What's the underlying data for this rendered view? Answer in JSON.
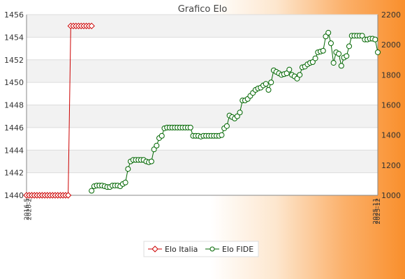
{
  "chart_data": {
    "type": "line",
    "title": "Grafico Elo",
    "xlabel": "",
    "ylabel": "",
    "y_left": {
      "range": [
        1440,
        1456
      ],
      "ticks": [
        1440,
        1442,
        1444,
        1446,
        1448,
        1450,
        1452,
        1454,
        1456
      ]
    },
    "y_right": {
      "range": [
        1000,
        2200
      ],
      "ticks": [
        1000,
        1200,
        1400,
        1600,
        1800,
        2000,
        2200
      ]
    },
    "grid": true,
    "legend_position": "bottom-center",
    "x_tick_labels_start": [
      "2016-5",
      "2020-2"
    ],
    "x_tick_labels_end": [
      "2025-11",
      "2025-12"
    ],
    "series": [
      {
        "name": "Elo Italia",
        "axis": "left",
        "color": "#cc0000",
        "marker": "diamond",
        "values": [
          1440,
          1440,
          1440,
          1440,
          1440,
          1440,
          1440,
          1440,
          1440,
          1440,
          1440,
          1440,
          1440,
          1440,
          1440,
          1440,
          1440,
          1455,
          1455,
          1455,
          1455,
          1455,
          1455,
          1455,
          1455,
          1455
        ]
      },
      {
        "name": "Elo FIDE",
        "axis": "right",
        "color": "#006600",
        "marker": "circle",
        "start_index": 25,
        "values": [
          1030,
          1060,
          1065,
          1065,
          1065,
          1060,
          1055,
          1055,
          1065,
          1065,
          1065,
          1060,
          1075,
          1085,
          1175,
          1225,
          1235,
          1235,
          1235,
          1235,
          1235,
          1225,
          1220,
          1225,
          1305,
          1330,
          1380,
          1395,
          1445,
          1450,
          1450,
          1450,
          1450,
          1450,
          1450,
          1450,
          1450,
          1450,
          1450,
          1395,
          1395,
          1395,
          1390,
          1395,
          1395,
          1395,
          1395,
          1395,
          1395,
          1395,
          1400,
          1445,
          1460,
          1530,
          1520,
          1510,
          1525,
          1550,
          1630,
          1630,
          1640,
          1660,
          1680,
          1700,
          1710,
          1715,
          1730,
          1740,
          1700,
          1750,
          1830,
          1820,
          1810,
          1800,
          1805,
          1810,
          1835,
          1800,
          1790,
          1775,
          1800,
          1850,
          1855,
          1870,
          1880,
          1885,
          1910,
          1950,
          1955,
          1960,
          2055,
          2080,
          2010,
          1880,
          1950,
          1940,
          1860,
          1915,
          1925,
          1990,
          2060,
          2060,
          2060,
          2060,
          2060,
          2035,
          2035,
          2040,
          2040,
          2035,
          1950
        ]
      }
    ]
  }
}
